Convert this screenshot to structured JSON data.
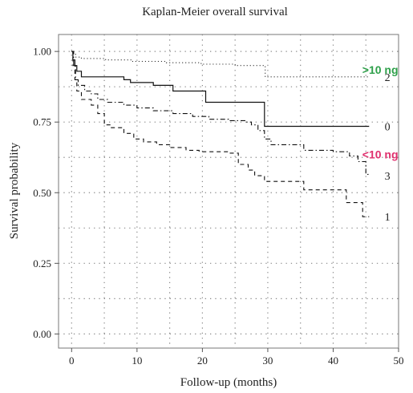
{
  "chart_data": {
    "type": "line",
    "title": "Kaplan-Meier overall survival",
    "xlabel": "Follow-up (months)",
    "ylabel": "Survival probability",
    "xlim": [
      -2,
      50
    ],
    "ylim": [
      -0.05,
      1.06
    ],
    "x_ticks": [
      0,
      10,
      20,
      30,
      40,
      50
    ],
    "y_ticks": [
      0.0,
      0.25,
      0.5,
      0.75,
      1.0
    ],
    "x_tick_labels": [
      "0",
      "10",
      "20",
      "30",
      "40",
      "50"
    ],
    "y_tick_labels": [
      "0.00",
      "0.25",
      "0.50",
      "0.75",
      "1.00"
    ],
    "grid": true,
    "series": [
      {
        "name": "2",
        "style": "dotted",
        "label_value": 0.91,
        "points": [
          [
            0,
            1.0
          ],
          [
            0.3,
            0.99
          ],
          [
            0.6,
            0.98
          ],
          [
            1.5,
            0.975
          ],
          [
            5.2,
            0.97
          ],
          [
            9.2,
            0.965
          ],
          [
            14.5,
            0.96
          ],
          [
            19.8,
            0.955
          ],
          [
            25.0,
            0.95
          ],
          [
            29.6,
            0.91
          ],
          [
            45.5,
            0.91
          ]
        ]
      },
      {
        "name": "0",
        "style": "solid",
        "label_value": 0.735,
        "points": [
          [
            0,
            1.0
          ],
          [
            0.2,
            0.97
          ],
          [
            0.5,
            0.95
          ],
          [
            0.8,
            0.93
          ],
          [
            1.5,
            0.91
          ],
          [
            8.0,
            0.9
          ],
          [
            9.0,
            0.89
          ],
          [
            12.5,
            0.88
          ],
          [
            15.5,
            0.86
          ],
          [
            17.0,
            0.86
          ],
          [
            20.5,
            0.82
          ],
          [
            29.5,
            0.735
          ],
          [
            45.5,
            0.735
          ]
        ]
      },
      {
        "name": "3",
        "style": "dashdot",
        "label_value": 0.56,
        "points": [
          [
            0,
            1.0
          ],
          [
            0.3,
            0.95
          ],
          [
            0.6,
            0.9
          ],
          [
            1.0,
            0.88
          ],
          [
            2.0,
            0.86
          ],
          [
            3.0,
            0.85
          ],
          [
            4.0,
            0.83
          ],
          [
            5.5,
            0.82
          ],
          [
            8.0,
            0.81
          ],
          [
            10.0,
            0.8
          ],
          [
            12.5,
            0.79
          ],
          [
            15.5,
            0.78
          ],
          [
            18.5,
            0.77
          ],
          [
            21.0,
            0.76
          ],
          [
            24.0,
            0.755
          ],
          [
            26.5,
            0.75
          ],
          [
            27.5,
            0.74
          ],
          [
            28.5,
            0.72
          ],
          [
            29.5,
            0.69
          ],
          [
            30.5,
            0.67
          ],
          [
            35.5,
            0.65
          ],
          [
            40.0,
            0.645
          ],
          [
            42.5,
            0.63
          ],
          [
            43.8,
            0.61
          ],
          [
            45.0,
            0.565
          ],
          [
            45.5,
            0.565
          ]
        ]
      },
      {
        "name": "1",
        "style": "dashed",
        "label_value": 0.415,
        "points": [
          [
            0,
            1.0
          ],
          [
            0.2,
            0.95
          ],
          [
            0.5,
            0.9
          ],
          [
            0.8,
            0.86
          ],
          [
            1.5,
            0.83
          ],
          [
            3.0,
            0.81
          ],
          [
            4.0,
            0.78
          ],
          [
            5.0,
            0.74
          ],
          [
            6.0,
            0.73
          ],
          [
            8.0,
            0.71
          ],
          [
            9.5,
            0.69
          ],
          [
            11.0,
            0.68
          ],
          [
            13.0,
            0.67
          ],
          [
            15.0,
            0.66
          ],
          [
            17.5,
            0.65
          ],
          [
            19.5,
            0.645
          ],
          [
            24.0,
            0.64
          ],
          [
            25.5,
            0.6
          ],
          [
            27.0,
            0.58
          ],
          [
            28.0,
            0.56
          ],
          [
            29.5,
            0.54
          ],
          [
            35.5,
            0.51
          ],
          [
            42.0,
            0.465
          ],
          [
            44.5,
            0.415
          ],
          [
            45.5,
            0.415
          ]
        ]
      }
    ],
    "annotations": [
      {
        "text": ">10 ng",
        "x": 47.2,
        "y": 0.935,
        "color": "#2ea04a"
      },
      {
        "text": "<10 ng",
        "x": 47.2,
        "y": 0.635,
        "color": "#e0306e"
      }
    ]
  }
}
